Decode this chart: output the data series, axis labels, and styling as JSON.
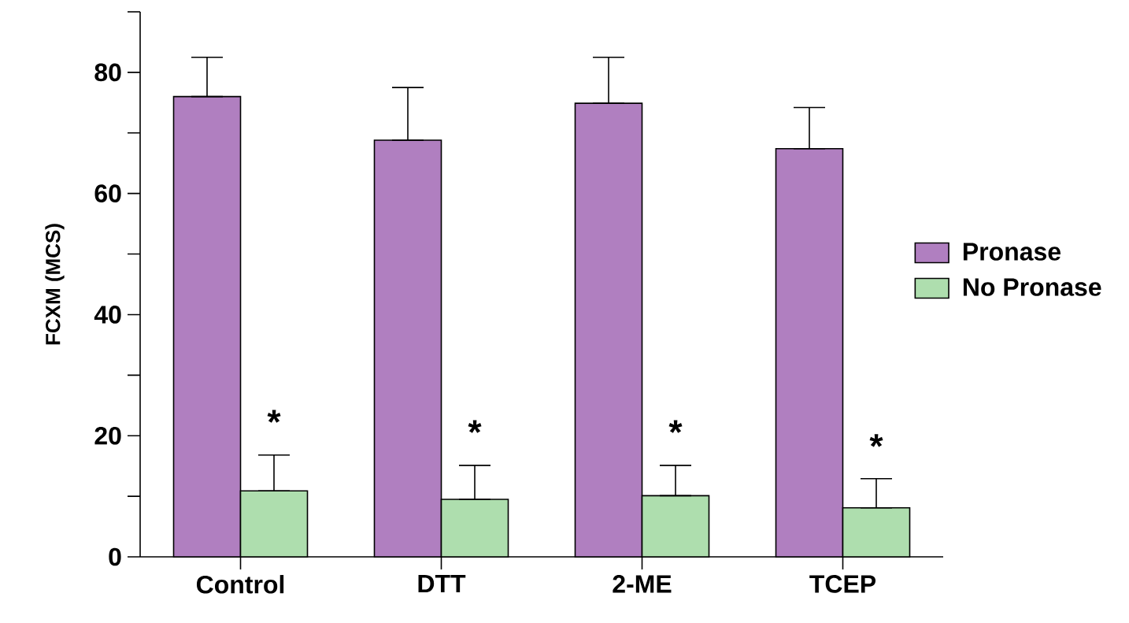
{
  "chart_data": {
    "type": "bar",
    "ylabel": "FCXM (MCS)",
    "categories": [
      "Control",
      "DTT",
      "2-ME",
      "TCEP"
    ],
    "series": [
      {
        "name": "Pronase",
        "color": "#b07fc0",
        "values": [
          76,
          68.8,
          74.9,
          67.4
        ],
        "errors": [
          [
            76,
            82.5
          ],
          [
            68.8,
            77.5
          ],
          [
            74.9,
            82.5
          ],
          [
            67.4,
            74.2
          ]
        ]
      },
      {
        "name": "No Pronase",
        "color": "#aedeae",
        "values": [
          10.9,
          9.5,
          10.1,
          8.1
        ],
        "errors": [
          [
            10.9,
            16.8
          ],
          [
            9.5,
            15.1
          ],
          [
            10.1,
            15.1
          ],
          [
            8.1,
            12.9
          ]
        ]
      }
    ],
    "ylim": [
      0,
      90
    ],
    "yticks": [
      0,
      20,
      40,
      60,
      80
    ],
    "annotations": [
      {
        "text": "*",
        "x": "Control",
        "y": 22.3
      },
      {
        "text": "*",
        "x": "DTT",
        "y": 20.6
      },
      {
        "text": "*",
        "x": "2-ME",
        "y": 20.6
      },
      {
        "text": "*",
        "x": "TCEP",
        "y": 18.3
      }
    ],
    "legend": "right"
  }
}
